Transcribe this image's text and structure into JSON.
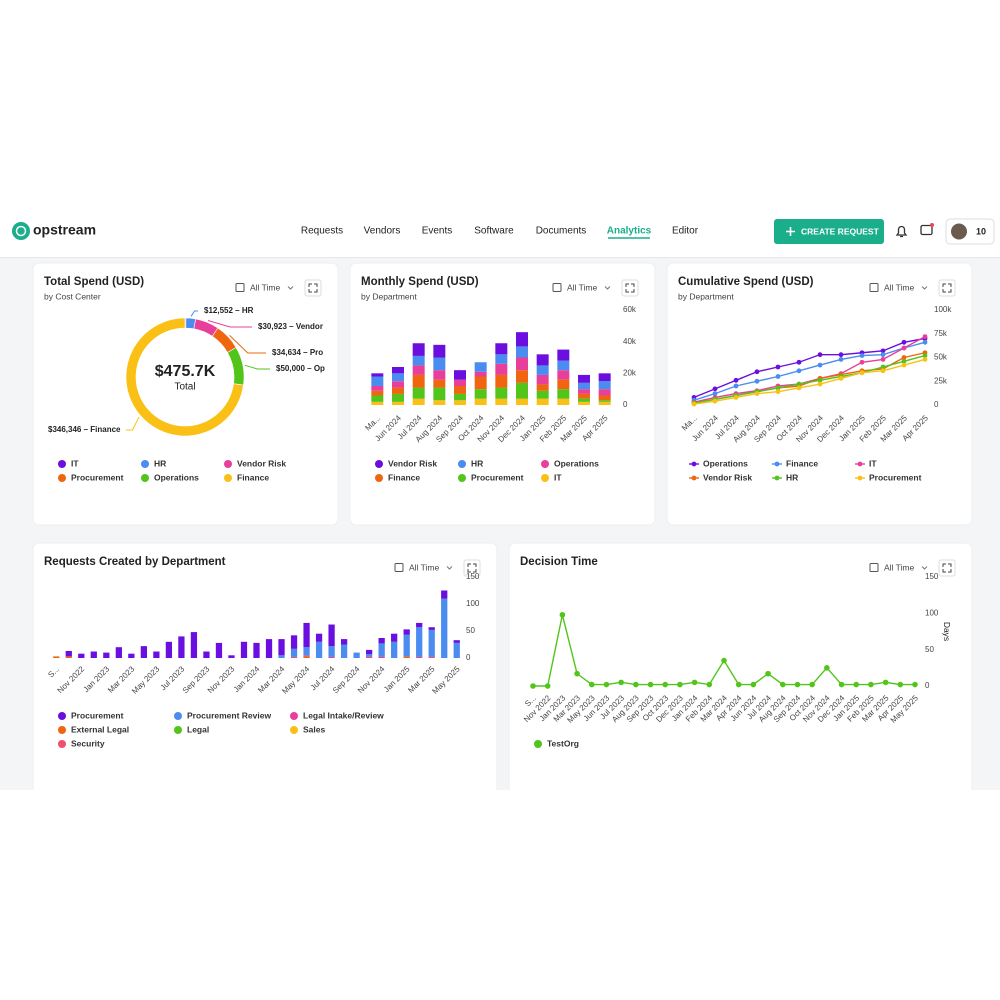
{
  "nav": {
    "logo": "opstream",
    "items": [
      "Requests",
      "Vendors",
      "Events",
      "Software",
      "Documents",
      "Analytics",
      "Editor"
    ],
    "active": 5,
    "button": "CREATE REQUEST",
    "avatar": "10"
  },
  "chart_data": [
    {
      "type": "pie",
      "donut": true,
      "title": "Total Spend (USD)",
      "subtitle": "by Cost Center",
      "filter": "All Time",
      "center_label": "$475.7K",
      "center_sublabel": "Total",
      "categories": [
        "IT",
        "HR",
        "Vendor Risk",
        "Procurement",
        "Operations",
        "Finance"
      ],
      "values": [
        1245,
        12552,
        30923,
        34634,
        50000,
        346346
      ],
      "value_labels": [
        null,
        "$12,552 – HR",
        "$30,923 – Vendor",
        "$34,634 – Pro",
        "$50,000 – Op",
        "$346,346 – Finance"
      ],
      "colors": [
        "#6a0fe0",
        "#4a8cf0",
        "#e8409a",
        "#f0650f",
        "#52c41a",
        "#fac015"
      ]
    },
    {
      "type": "bar",
      "stacked": true,
      "title": "Monthly Spend (USD)",
      "subtitle": "by Department",
      "filter": "All Time",
      "yaxis": "right",
      "categories": [
        "Ma...",
        "Jun 2024",
        "Jul 2024",
        "Aug 2024",
        "Sep 2024",
        "Oct 2024",
        "Nov 2024",
        "Dec 2024",
        "Jan 2025",
        "Feb 2025",
        "Mar 2025",
        "Apr 2025"
      ],
      "series": [
        {
          "name": "Vendor Risk",
          "color": "#6a0fe0",
          "values": [
            2000,
            4000,
            8000,
            8000,
            6000,
            0,
            7000,
            9000,
            7000,
            7000,
            5000,
            5000
          ]
        },
        {
          "name": "HR",
          "color": "#4a8cf0",
          "values": [
            6000,
            5000,
            6000,
            8000,
            0,
            6000,
            6000,
            7000,
            6000,
            6000,
            4000,
            5000
          ]
        },
        {
          "name": "Operations",
          "color": "#e8409a",
          "values": [
            3000,
            4000,
            6000,
            6000,
            4000,
            3000,
            7000,
            8000,
            6000,
            6000,
            3000,
            4000
          ]
        },
        {
          "name": "Finance",
          "color": "#f0650f",
          "values": [
            3000,
            4000,
            8000,
            5000,
            5000,
            8000,
            8000,
            8000,
            4000,
            6000,
            3000,
            3000
          ]
        },
        {
          "name": "Procurement",
          "color": "#52c41a",
          "values": [
            4000,
            5000,
            7000,
            8000,
            4000,
            6000,
            7000,
            10000,
            5000,
            6000,
            2000,
            1000
          ]
        },
        {
          "name": "IT",
          "color": "#fac015",
          "values": [
            2000,
            2000,
            4000,
            3000,
            3000,
            4000,
            4000,
            4000,
            4000,
            4000,
            2000,
            2000
          ]
        }
      ],
      "ylim": [
        0,
        60000
      ],
      "yticks": [
        0,
        {
          "value": 20000,
          "label": "20k"
        },
        {
          "value": 40000,
          "label": "40k"
        },
        {
          "value": 60000,
          "label": "60k"
        }
      ]
    },
    {
      "type": "line",
      "title": "Cumulative Spend (USD)",
      "subtitle": "by Department",
      "filter": "All Time",
      "yaxis": "right",
      "categories": [
        "Ma...",
        "Jun 2024",
        "Jul 2024",
        "Aug 2024",
        "Sep 2024",
        "Oct 2024",
        "Nov 2024",
        "Dec 2024",
        "Jan 2025",
        "Feb 2025",
        "Mar 2025",
        "Apr 2025"
      ],
      "series": [
        {
          "name": "Operations",
          "color": "#6a0fe0",
          "values": [
            8000,
            17000,
            26000,
            35000,
            40000,
            45000,
            53000,
            53000,
            55000,
            57000,
            66000,
            70000
          ]
        },
        {
          "name": "Finance",
          "color": "#4a8cf0",
          "values": [
            5000,
            12000,
            20000,
            25000,
            30000,
            36000,
            42000,
            48000,
            52000,
            53000,
            60000,
            66000
          ]
        },
        {
          "name": "IT",
          "color": "#e8409a",
          "values": [
            3000,
            8000,
            12000,
            15000,
            20000,
            22000,
            28000,
            33000,
            45000,
            48000,
            60000,
            72000
          ]
        },
        {
          "name": "Vendor Risk",
          "color": "#f0650f",
          "values": [
            2000,
            6000,
            10000,
            14000,
            18000,
            20000,
            28000,
            32000,
            36000,
            38000,
            50000,
            55000
          ]
        },
        {
          "name": "HR",
          "color": "#52c41a",
          "values": [
            2000,
            6000,
            10000,
            14000,
            18000,
            22000,
            26000,
            30000,
            34000,
            40000,
            46000,
            52000
          ]
        },
        {
          "name": "Procurement",
          "color": "#fac015",
          "values": [
            1000,
            4000,
            8000,
            12000,
            14000,
            18000,
            22000,
            28000,
            34000,
            36000,
            42000,
            48000
          ]
        }
      ],
      "ylim": [
        0,
        100000
      ],
      "yticks": [
        0,
        {
          "value": 25000,
          "label": "25k"
        },
        {
          "value": 50000,
          "label": "50k"
        },
        {
          "value": 75000,
          "label": "75k"
        },
        {
          "value": 100000,
          "label": "100k"
        }
      ]
    },
    {
      "type": "bar",
      "stacked": true,
      "title": "Requests Created by Department",
      "filter": "All Time",
      "yaxis": "right",
      "categories": [
        "S...",
        null,
        "Nov 2022",
        null,
        "Jan 2023",
        null,
        "Mar 2023",
        null,
        "May 2023",
        null,
        "Jul 2023",
        null,
        "Sep 2023",
        null,
        "Nov 2023",
        null,
        "Jan 2024",
        null,
        "Mar 2024",
        null,
        "May 2024",
        null,
        "Jul 2024",
        null,
        "Sep 2024",
        null,
        "Nov 2024",
        null,
        "Jan 2025",
        null,
        "Mar 2025",
        null,
        "May 2025"
      ],
      "series": [
        {
          "name": "Procurement",
          "color": "#6a0fe0",
          "values": [
            0,
            10,
            8,
            12,
            10,
            20,
            8,
            22,
            12,
            30,
            40,
            48,
            12,
            28,
            5,
            30,
            28,
            35,
            30,
            25,
            45,
            15,
            40,
            10,
            0,
            8,
            10,
            15,
            10,
            8,
            5,
            15,
            5
          ]
        },
        {
          "name": "Procurement Review",
          "color": "#4a8cf0",
          "values": [
            0,
            0,
            0,
            0,
            0,
            0,
            0,
            0,
            0,
            0,
            0,
            0,
            0,
            0,
            0,
            0,
            0,
            0,
            5,
            15,
            15,
            30,
            20,
            25,
            10,
            5,
            25,
            30,
            40,
            55,
            50,
            110,
            28
          ]
        },
        {
          "name": "Legal Intake/Review",
          "color": "#e8409a",
          "values": [
            0,
            0,
            0,
            0,
            0,
            0,
            0,
            0,
            0,
            0,
            0,
            0,
            0,
            0,
            0,
            0,
            0,
            0,
            0,
            0,
            2,
            0,
            2,
            0,
            0,
            0,
            2,
            0,
            0,
            2,
            0,
            0,
            0
          ]
        },
        {
          "name": "External Legal",
          "color": "#f0650f",
          "values": [
            3,
            3,
            0,
            0,
            0,
            0,
            0,
            0,
            0,
            0,
            0,
            0,
            0,
            0,
            0,
            0,
            0,
            0,
            0,
            0,
            3,
            0,
            0,
            0,
            0,
            0,
            0,
            0,
            3,
            0,
            0,
            0,
            0
          ]
        },
        {
          "name": "Legal",
          "color": "#52c41a",
          "values": [
            0,
            0,
            0,
            0,
            0,
            0,
            0,
            0,
            0,
            0,
            0,
            0,
            0,
            0,
            0,
            0,
            0,
            0,
            0,
            0,
            0,
            0,
            0,
            0,
            0,
            0,
            0,
            0,
            0,
            0,
            0,
            0,
            0
          ]
        },
        {
          "name": "Sales",
          "color": "#fac015",
          "values": [
            0,
            0,
            0,
            0,
            0,
            0,
            0,
            0,
            0,
            0,
            0,
            0,
            0,
            0,
            0,
            0,
            0,
            0,
            0,
            0,
            0,
            0,
            0,
            0,
            0,
            0,
            0,
            0,
            0,
            0,
            0,
            0,
            0
          ]
        },
        {
          "name": "Security",
          "color": "#f0506e",
          "values": [
            0,
            0,
            0,
            0,
            0,
            0,
            0,
            0,
            0,
            0,
            0,
            0,
            0,
            0,
            0,
            0,
            0,
            0,
            0,
            2,
            0,
            0,
            0,
            0,
            0,
            2,
            0,
            0,
            0,
            0,
            2,
            0,
            0
          ]
        }
      ],
      "ylim": [
        0,
        150
      ],
      "yticks": [
        0,
        50,
        100,
        150
      ]
    },
    {
      "type": "line",
      "title": "Decision Time",
      "filter": "All Time",
      "yaxis": "right",
      "ylabel": "Days",
      "categories": [
        "S...",
        "Nov 2022",
        "Jan 2023",
        "Mar 2023",
        "May 2023",
        "Jun 2023",
        "Jul 2023",
        "Aug 2023",
        "Sep 2023",
        "Oct 2023",
        "Dec 2023",
        "Jan 2024",
        "Feb 2024",
        "Mar 2024",
        "Apr 2024",
        "Jun 2024",
        "Jul 2024",
        "Aug 2024",
        "Sep 2024",
        "Oct 2024",
        "Nov 2024",
        "Dec 2024",
        "Jan 2025",
        "Feb 2025",
        "Mar 2025",
        "Apr 2025",
        "May 2025"
      ],
      "series": [
        {
          "name": "TestOrg",
          "color": "#52c41a",
          "values": [
            0,
            0,
            98,
            17,
            2,
            2,
            5,
            2,
            2,
            2,
            2,
            5,
            2,
            35,
            2,
            2,
            17,
            2,
            2,
            2,
            25,
            2,
            2,
            2,
            5,
            2,
            2
          ]
        }
      ],
      "ylim": [
        0,
        150
      ],
      "yticks": [
        0,
        50,
        100,
        150
      ]
    }
  ]
}
